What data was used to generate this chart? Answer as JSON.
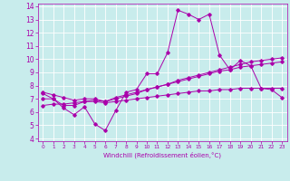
{
  "xlabel": "Windchill (Refroidissement éolien,°C)",
  "bg_color": "#c8ecec",
  "line_color": "#aa00aa",
  "xlim": [
    -0.5,
    23.5
  ],
  "ylim": [
    3.8,
    14.2
  ],
  "yticks": [
    4,
    5,
    6,
    7,
    8,
    9,
    10,
    11,
    12,
    13,
    14
  ],
  "xticks": [
    0,
    1,
    2,
    3,
    4,
    5,
    6,
    7,
    8,
    9,
    10,
    11,
    12,
    13,
    14,
    15,
    16,
    17,
    18,
    19,
    20,
    21,
    22,
    23
  ],
  "series": [
    [
      7.4,
      7.0,
      6.3,
      5.8,
      6.4,
      5.1,
      4.6,
      6.1,
      7.5,
      7.7,
      8.9,
      8.9,
      10.5,
      13.7,
      13.4,
      13.0,
      13.4,
      10.3,
      9.2,
      9.9,
      9.5,
      7.8,
      7.7,
      7.1
    ],
    [
      7.0,
      7.0,
      6.5,
      6.5,
      6.8,
      6.9,
      6.8,
      7.1,
      7.3,
      7.5,
      7.7,
      7.9,
      8.1,
      8.3,
      8.5,
      8.7,
      8.9,
      9.1,
      9.2,
      9.4,
      9.5,
      9.6,
      9.7,
      9.8
    ],
    [
      7.5,
      7.3,
      7.1,
      6.9,
      7.0,
      7.0,
      6.8,
      7.0,
      7.2,
      7.4,
      7.7,
      7.9,
      8.1,
      8.4,
      8.6,
      8.8,
      9.0,
      9.2,
      9.4,
      9.6,
      9.8,
      9.9,
      10.0,
      10.1
    ],
    [
      6.5,
      6.6,
      6.6,
      6.7,
      6.8,
      6.8,
      6.7,
      6.8,
      6.9,
      7.0,
      7.1,
      7.2,
      7.3,
      7.4,
      7.5,
      7.6,
      7.6,
      7.7,
      7.7,
      7.8,
      7.8,
      7.8,
      7.8,
      7.8
    ]
  ]
}
